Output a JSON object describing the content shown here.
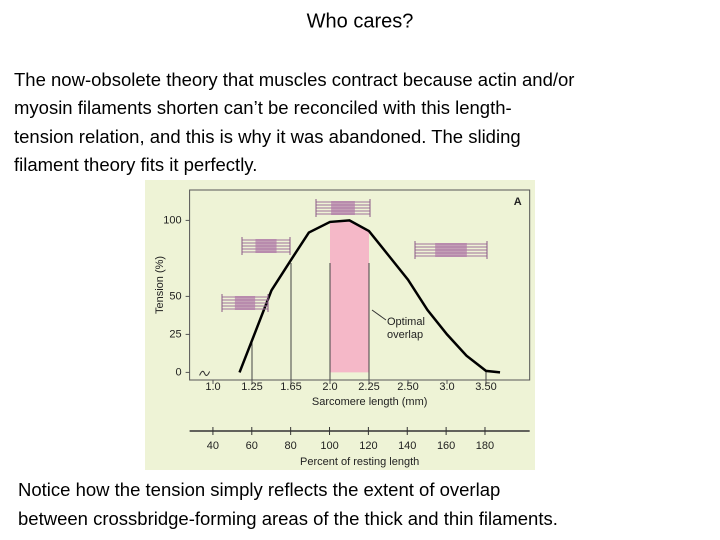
{
  "title": "Who cares?",
  "paragraph": [
    "The now-obsolete theory that muscles contract because actin and/or",
    "myosin filaments shorten can’t be reconciled with this length-",
    "tension relation, and this is why it was abandoned.  The sliding",
    "filament theory fits it perfectly."
  ],
  "chart_data": {
    "type": "line",
    "panel_label": "A",
    "xlabel": "Sarcomere length (mm)",
    "ylabel": "Tension (%)",
    "x2label": "Percent of resting length",
    "x": [
      1.17,
      1.25,
      1.45,
      1.65,
      1.81,
      2.0,
      2.125,
      2.25,
      2.375,
      2.5,
      2.75,
      3.0,
      3.25,
      3.5,
      3.68
    ],
    "values": [
      0,
      21,
      54,
      74,
      92,
      99,
      100,
      93,
      77,
      61,
      41,
      25,
      11,
      1,
      0
    ],
    "color": "#000000",
    "shaded_span": [
      2.0,
      2.25
    ],
    "shaded_color": "#f5b8c8",
    "reference_lines": [
      1.25,
      1.65,
      2.0,
      2.25,
      3.5
    ],
    "annotation": [
      "Optimal",
      "overlap"
    ],
    "xlim": [
      0.85,
      4.06
    ],
    "xticks": [
      {
        "value": 1,
        "label": "1.0"
      },
      1.25,
      1.65,
      {
        "value": 2,
        "label": "2.0"
      },
      2.25,
      {
        "value": 2.5,
        "label": "2.50"
      },
      {
        "value": 3,
        "label": "3.0"
      },
      {
        "value": 3.5,
        "label": "3.50"
      }
    ],
    "ylim": [
      -5,
      120
    ],
    "yticks": [
      0,
      25,
      50,
      100
    ],
    "x2lim": [
      28,
      203
    ],
    "x2ticks": [
      40,
      60,
      80,
      100,
      120,
      140,
      160,
      180
    ]
  },
  "footer": [
    "Notice how the tension simply reflects the extent of overlap",
    "between crossbridge-forming areas of the thick and thin filaments."
  ]
}
